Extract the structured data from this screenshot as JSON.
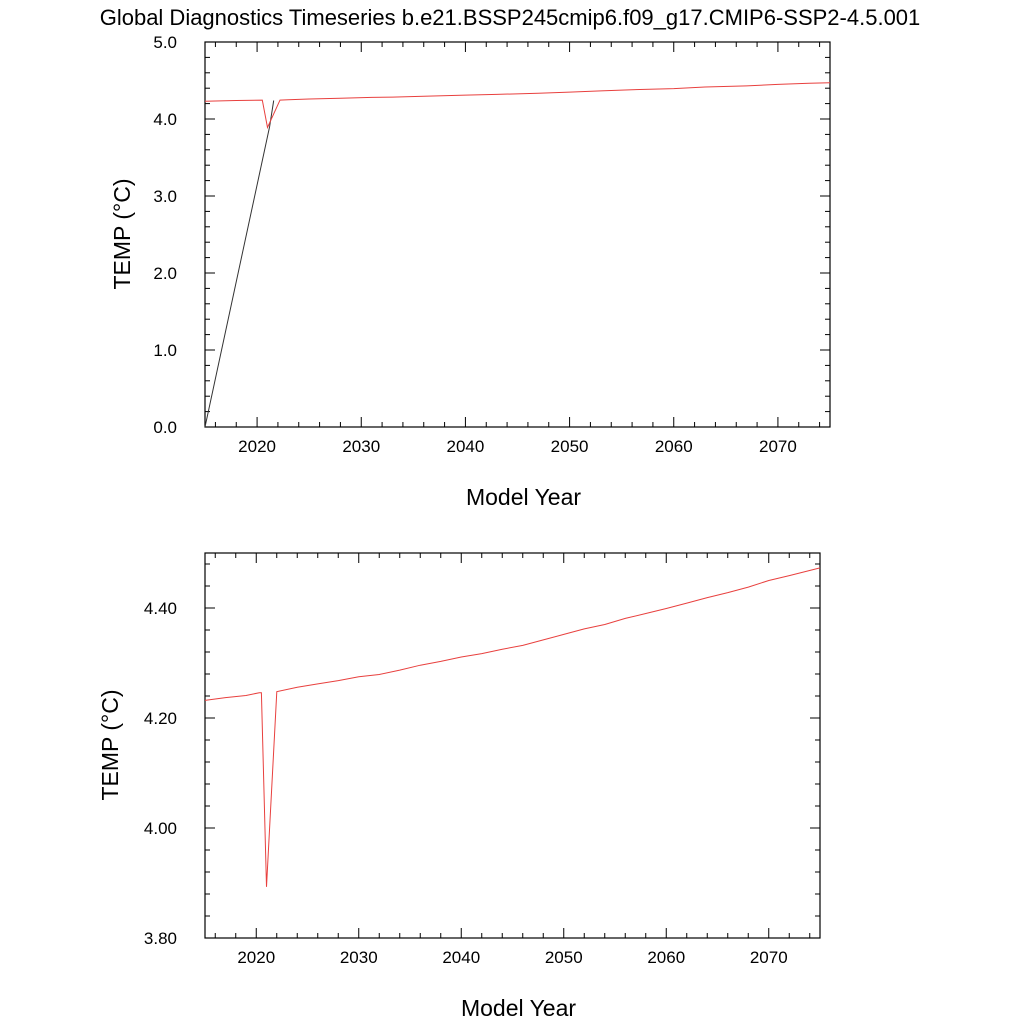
{
  "figure_title": "Global Diagnostics Timeseries b.e21.BSSP245cmip6.f09_g17.CMIP6-SSP2-4.5.001",
  "colors": {
    "series_black": "#333333",
    "series_red": "#e8403e"
  },
  "chart_data": [
    {
      "type": "line",
      "xlabel": "Model Year",
      "ylabel": "TEMP (°C)",
      "xlim": [
        2015,
        2075
      ],
      "ylim": [
        0.0,
        5.0
      ],
      "x_ticks": [
        2020,
        2030,
        2040,
        2050,
        2060,
        2070
      ],
      "y_ticks": [
        0.0,
        1.0,
        2.0,
        3.0,
        4.0,
        5.0
      ],
      "y_tick_labels": [
        "0.0",
        "1.0",
        "2.0",
        "3.0",
        "4.0",
        "5.0"
      ],
      "x_minor_step": 2,
      "y_minor_step": 0.2,
      "grid": false,
      "series": [
        {
          "color": "#333333",
          "points": [
            [
              2015.0,
              0.0
            ],
            [
              2021.2,
              3.9
            ],
            [
              2021.6,
              4.24
            ]
          ]
        },
        {
          "color": "#e8403e",
          "points": [
            [
              2015.0,
              4.23
            ],
            [
              2018.0,
              4.24
            ],
            [
              2020.5,
              4.245
            ],
            [
              2021.0,
              3.89
            ],
            [
              2022.2,
              4.245
            ],
            [
              2023.0,
              4.25
            ],
            [
              2025.0,
              4.26
            ],
            [
              2028.0,
              4.27
            ],
            [
              2031.0,
              4.28
            ],
            [
              2033.0,
              4.285
            ],
            [
              2036.0,
              4.295
            ],
            [
              2040.0,
              4.31
            ],
            [
              2043.0,
              4.32
            ],
            [
              2047.0,
              4.335
            ],
            [
              2050.0,
              4.35
            ],
            [
              2053.0,
              4.365
            ],
            [
              2056.0,
              4.38
            ],
            [
              2060.0,
              4.395
            ],
            [
              2063.0,
              4.415
            ],
            [
              2067.0,
              4.43
            ],
            [
              2070.0,
              4.45
            ],
            [
              2073.0,
              4.465
            ],
            [
              2075.0,
              4.47
            ]
          ]
        }
      ]
    },
    {
      "type": "line",
      "xlabel": "Model Year",
      "ylabel": "TEMP (°C)",
      "xlim": [
        2015,
        2075
      ],
      "ylim": [
        3.8,
        4.5
      ],
      "x_ticks": [
        2020,
        2030,
        2040,
        2050,
        2060,
        2070
      ],
      "y_ticks": [
        3.8,
        4.0,
        4.2,
        4.4
      ],
      "y_tick_labels": [
        "3.80",
        "4.00",
        "4.20",
        "4.40"
      ],
      "x_minor_step": 2,
      "y_minor_step": 0.04,
      "grid": false,
      "series": [
        {
          "color": "#e8403e",
          "points": [
            [
              2015.0,
              4.232
            ],
            [
              2017.0,
              4.237
            ],
            [
              2019.0,
              4.241
            ],
            [
              2020.3,
              4.246
            ],
            [
              2020.5,
              4.246
            ],
            [
              2021.0,
              3.893
            ],
            [
              2022.0,
              4.248
            ],
            [
              2024.0,
              4.256
            ],
            [
              2026.0,
              4.262
            ],
            [
              2028.0,
              4.268
            ],
            [
              2030.0,
              4.275
            ],
            [
              2032.0,
              4.279
            ],
            [
              2034.0,
              4.287
            ],
            [
              2036.0,
              4.296
            ],
            [
              2038.0,
              4.303
            ],
            [
              2040.0,
              4.311
            ],
            [
              2042.0,
              4.317
            ],
            [
              2044.0,
              4.325
            ],
            [
              2046.0,
              4.332
            ],
            [
              2048.0,
              4.342
            ],
            [
              2050.0,
              4.352
            ],
            [
              2052.0,
              4.362
            ],
            [
              2054.0,
              4.37
            ],
            [
              2056.0,
              4.381
            ],
            [
              2058.0,
              4.39
            ],
            [
              2060.0,
              4.399
            ],
            [
              2062.0,
              4.409
            ],
            [
              2064.0,
              4.419
            ],
            [
              2066.0,
              4.428
            ],
            [
              2068.0,
              4.438
            ],
            [
              2070.0,
              4.45
            ],
            [
              2072.0,
              4.459
            ],
            [
              2075.0,
              4.473
            ]
          ]
        }
      ]
    }
  ]
}
